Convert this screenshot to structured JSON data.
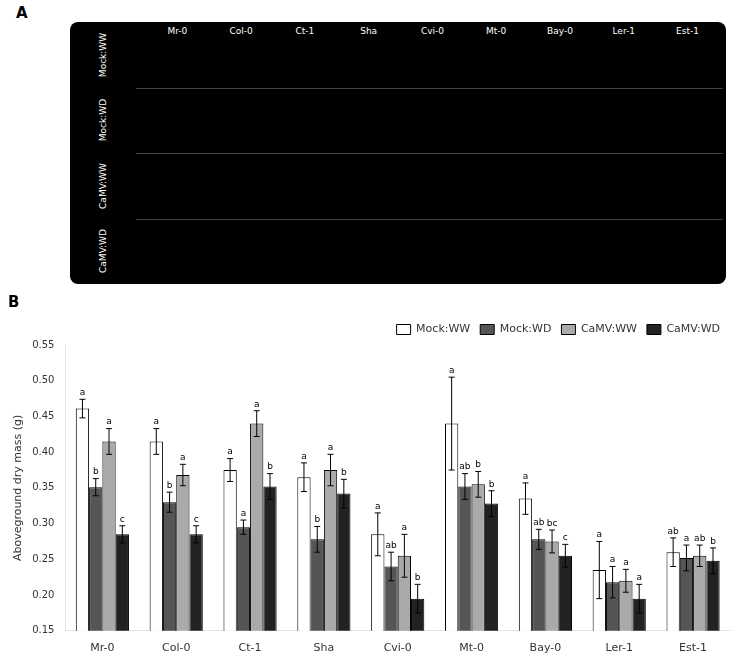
{
  "chart_data": [
    {
      "type": "image",
      "title": "A",
      "categories": [
        "Mr-0",
        "Col-0",
        "Ct-1",
        "Sha",
        "Cvi-0",
        "Mt-0",
        "Bay-0",
        "Ler-1",
        "Est-1"
      ],
      "annotations": [
        "Mock:WW",
        "Mock:WD",
        "CaMV:WW",
        "CaMV:WD"
      ]
    },
    {
      "type": "bar",
      "title": "B",
      "categories": [
        "Mr-0",
        "Col-0",
        "Ct-1",
        "Sha",
        "Cvi-0",
        "Mt-0",
        "Bay-0",
        "Ler-1",
        "Est-1"
      ],
      "series": [
        {
          "name": "Mock:WW",
          "color": "#FFFFFF",
          "values": [
            0.461,
            0.415,
            0.375,
            0.365,
            0.285,
            0.44,
            0.335,
            0.235,
            0.26
          ],
          "errors": [
            0.013,
            0.018,
            0.016,
            0.02,
            0.03,
            0.065,
            0.022,
            0.04,
            0.02
          ],
          "annotations": [
            "a",
            "a",
            "a",
            "a",
            "a",
            "a",
            "a",
            "a",
            "ab"
          ]
        },
        {
          "name": "Mock:WD",
          "color": "#555555",
          "values": [
            0.351,
            0.33,
            0.295,
            0.278,
            0.24,
            0.352,
            0.278,
            0.218,
            0.252
          ],
          "errors": [
            0.012,
            0.014,
            0.01,
            0.018,
            0.02,
            0.018,
            0.014,
            0.022,
            0.018
          ],
          "annotations": [
            "b",
            "b",
            "a",
            "b",
            "ab",
            "ab",
            "ab",
            "a",
            "a"
          ]
        },
        {
          "name": "CaMV:WW",
          "color": "#AAAAAA",
          "values": [
            0.415,
            0.368,
            0.44,
            0.375,
            0.255,
            0.355,
            0.275,
            0.22,
            0.255
          ],
          "errors": [
            0.018,
            0.015,
            0.018,
            0.022,
            0.03,
            0.018,
            0.016,
            0.016,
            0.015
          ],
          "annotations": [
            "a",
            "a",
            "a",
            "a",
            "a",
            "b",
            "bc",
            "a",
            "ab"
          ]
        },
        {
          "name": "CaMV:WD",
          "color": "#222222",
          "values": [
            0.285,
            0.285,
            0.352,
            0.342,
            0.195,
            0.328,
            0.255,
            0.195,
            0.248
          ],
          "errors": [
            0.012,
            0.012,
            0.018,
            0.02,
            0.02,
            0.018,
            0.016,
            0.02,
            0.018
          ],
          "annotations": [
            "c",
            "c",
            "b",
            "b",
            "b",
            "b",
            "c",
            "a",
            "b"
          ]
        }
      ],
      "ylabel": "Aboveground dry mass (g)",
      "ylim": [
        0.15,
        0.55
      ],
      "yticks": [
        0.15,
        {
          "value": 0.2,
          "label": "0.20"
        },
        0.25,
        {
          "value": 0.3,
          "label": "0.30"
        },
        0.35,
        {
          "value": 0.4,
          "label": "0.40"
        },
        0.45,
        {
          "value": 0.5,
          "label": "0.50"
        },
        0.55
      ],
      "grid": false,
      "legend": "upper right"
    }
  ]
}
